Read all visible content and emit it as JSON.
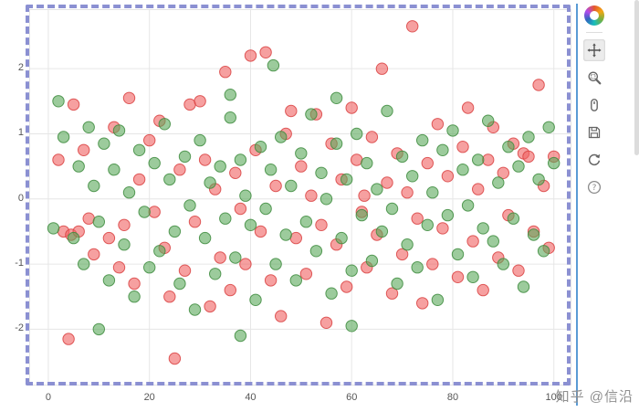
{
  "watermark": "知乎 @信沿",
  "toolbar": {
    "logo": "bokeh-logo",
    "tools": [
      {
        "name": "pan",
        "icon": "pan-icon",
        "active": true
      },
      {
        "name": "box-zoom",
        "icon": "box-zoom-icon",
        "active": false
      },
      {
        "name": "wheel-zoom",
        "icon": "wheel-zoom-icon",
        "active": false
      },
      {
        "name": "save",
        "icon": "save-icon",
        "active": false
      },
      {
        "name": "reset",
        "icon": "reset-icon",
        "active": false
      },
      {
        "name": "help",
        "icon": "help-icon",
        "active": false
      }
    ]
  },
  "colors": {
    "red_fill": "#f06060",
    "red_stroke": "#d94141",
    "green_fill": "#5aa95a",
    "green_stroke": "#3d8b3d",
    "grid": "#e6e6e6",
    "axis_label": "#565656",
    "selection_border": "#8b90d2",
    "toolbar_divider": "#5a9bd5"
  },
  "chart_data": {
    "type": "scatter",
    "title": "",
    "xlabel": "",
    "ylabel": "",
    "grid": true,
    "legend": "none",
    "xlim": [
      -3.6,
      103.3
    ],
    "ylim": [
      -2.85,
      2.9
    ],
    "x_ticks": [
      0,
      20,
      40,
      60,
      80,
      100
    ],
    "y_ticks": [
      -2,
      -1,
      0,
      1,
      2
    ],
    "series": [
      {
        "name": "red",
        "fill": "#f06060",
        "stroke": "#d94141",
        "points": [
          [
            4,
            -2.15
          ],
          [
            25,
            -2.45
          ],
          [
            72,
            2.65
          ],
          [
            40,
            2.2
          ],
          [
            43,
            2.25
          ],
          [
            97,
            1.75
          ],
          [
            5,
            1.45
          ],
          [
            16,
            1.55
          ],
          [
            28,
            1.45
          ],
          [
            22,
            1.2
          ],
          [
            35,
            1.95
          ],
          [
            30,
            1.5
          ],
          [
            48,
            1.35
          ],
          [
            53,
            1.3
          ],
          [
            60,
            1.4
          ],
          [
            66,
            2.0
          ],
          [
            83,
            1.4
          ],
          [
            88,
            1.1
          ],
          [
            2,
            0.6
          ],
          [
            3,
            -0.5
          ],
          [
            4.5,
            -0.55
          ],
          [
            6,
            -0.5
          ],
          [
            8,
            -0.3
          ],
          [
            9,
            -0.85
          ],
          [
            12,
            -0.6
          ],
          [
            14,
            -1.05
          ],
          [
            15,
            -0.4
          ],
          [
            17,
            -1.3
          ],
          [
            18,
            0.3
          ],
          [
            20,
            0.9
          ],
          [
            21,
            -0.2
          ],
          [
            23,
            -0.75
          ],
          [
            24,
            -1.5
          ],
          [
            26,
            0.45
          ],
          [
            27,
            -1.1
          ],
          [
            29,
            -0.35
          ],
          [
            31,
            0.6
          ],
          [
            32,
            -1.65
          ],
          [
            33,
            0.15
          ],
          [
            34,
            -0.9
          ],
          [
            36,
            -1.4
          ],
          [
            37,
            0.4
          ],
          [
            38,
            -0.15
          ],
          [
            39,
            -1.0
          ],
          [
            41,
            0.75
          ],
          [
            42,
            -0.5
          ],
          [
            44,
            -1.25
          ],
          [
            45,
            0.2
          ],
          [
            46,
            -1.8
          ],
          [
            47,
            1.0
          ],
          [
            49,
            -0.6
          ],
          [
            50,
            0.5
          ],
          [
            51,
            -1.15
          ],
          [
            52,
            0.05
          ],
          [
            54,
            -0.4
          ],
          [
            55,
            -1.9
          ],
          [
            56,
            0.85
          ],
          [
            57,
            -0.7
          ],
          [
            58,
            0.3
          ],
          [
            59,
            -1.35
          ],
          [
            61,
            0.6
          ],
          [
            62,
            -0.2
          ],
          [
            63,
            -1.05
          ],
          [
            64,
            0.95
          ],
          [
            65,
            -0.55
          ],
          [
            67,
            0.25
          ],
          [
            68,
            -1.45
          ],
          [
            69,
            0.7
          ],
          [
            70,
            -0.85
          ],
          [
            71,
            0.1
          ],
          [
            73,
            -0.3
          ],
          [
            74,
            -1.6
          ],
          [
            75,
            0.55
          ],
          [
            76,
            -1.0
          ],
          [
            77,
            1.15
          ],
          [
            78,
            -0.45
          ],
          [
            79,
            0.35
          ],
          [
            81,
            -1.2
          ],
          [
            82,
            0.8
          ],
          [
            84,
            -0.65
          ],
          [
            85,
            0.15
          ],
          [
            86,
            -1.4
          ],
          [
            87,
            0.6
          ],
          [
            89,
            -0.9
          ],
          [
            90,
            0.4
          ],
          [
            91,
            -0.25
          ],
          [
            92,
            0.85
          ],
          [
            93,
            -1.1
          ],
          [
            94,
            0.7
          ],
          [
            95,
            0.65
          ],
          [
            96,
            -0.5
          ],
          [
            98,
            0.2
          ],
          [
            99,
            -0.75
          ],
          [
            100,
            0.65
          ],
          [
            62.5,
            0.05
          ],
          [
            13,
            1.1
          ],
          [
            7,
            0.75
          ]
        ]
      },
      {
        "name": "green",
        "fill": "#5aa95a",
        "stroke": "#3d8b3d",
        "points": [
          [
            2,
            1.5
          ],
          [
            1,
            -0.45
          ],
          [
            3,
            0.95
          ],
          [
            5,
            -0.6
          ],
          [
            6,
            0.5
          ],
          [
            7,
            -1.0
          ],
          [
            8,
            1.1
          ],
          [
            9,
            0.2
          ],
          [
            10,
            -0.35
          ],
          [
            11,
            0.85
          ],
          [
            12,
            -1.25
          ],
          [
            13,
            0.45
          ],
          [
            14,
            1.05
          ],
          [
            15,
            -0.7
          ],
          [
            16,
            0.1
          ],
          [
            17,
            -1.5
          ],
          [
            18,
            0.75
          ],
          [
            19,
            -0.2
          ],
          [
            20,
            -1.05
          ],
          [
            21,
            0.55
          ],
          [
            22,
            -0.8
          ],
          [
            23,
            1.15
          ],
          [
            24,
            0.3
          ],
          [
            25,
            -0.5
          ],
          [
            26,
            -1.3
          ],
          [
            27,
            0.65
          ],
          [
            28,
            -0.1
          ],
          [
            29,
            -1.7
          ],
          [
            30,
            0.9
          ],
          [
            31,
            -0.6
          ],
          [
            32,
            0.25
          ],
          [
            33,
            -1.15
          ],
          [
            34,
            0.5
          ],
          [
            35,
            -0.3
          ],
          [
            36,
            1.25
          ],
          [
            37,
            -0.9
          ],
          [
            38,
            0.6
          ],
          [
            39,
            0.05
          ],
          [
            40,
            -0.4
          ],
          [
            41,
            -1.55
          ],
          [
            42,
            0.8
          ],
          [
            43,
            -0.15
          ],
          [
            44,
            0.45
          ],
          [
            45,
            -1.0
          ],
          [
            46,
            0.95
          ],
          [
            47,
            -0.55
          ],
          [
            48,
            0.2
          ],
          [
            49,
            -1.25
          ],
          [
            50,
            0.7
          ],
          [
            51,
            -0.35
          ],
          [
            52,
            1.3
          ],
          [
            53,
            -0.8
          ],
          [
            54,
            0.4
          ],
          [
            55,
            0.0
          ],
          [
            56,
            -1.45
          ],
          [
            57,
            0.85
          ],
          [
            58,
            -0.6
          ],
          [
            59,
            0.3
          ],
          [
            60,
            -1.1
          ],
          [
            61,
            1.0
          ],
          [
            62,
            -0.25
          ],
          [
            63,
            0.55
          ],
          [
            64,
            -0.95
          ],
          [
            65,
            0.15
          ],
          [
            66,
            -0.5
          ],
          [
            67,
            1.35
          ],
          [
            68,
            -0.15
          ],
          [
            69,
            -1.3
          ],
          [
            70,
            0.65
          ],
          [
            71,
            -0.7
          ],
          [
            72,
            0.35
          ],
          [
            73,
            -1.05
          ],
          [
            74,
            0.9
          ],
          [
            75,
            -0.4
          ],
          [
            76,
            0.1
          ],
          [
            77,
            -1.55
          ],
          [
            78,
            0.75
          ],
          [
            79,
            -0.25
          ],
          [
            80,
            1.05
          ],
          [
            81,
            -0.85
          ],
          [
            82,
            0.45
          ],
          [
            83,
            -0.1
          ],
          [
            84,
            -1.2
          ],
          [
            85,
            0.6
          ],
          [
            86,
            -0.45
          ],
          [
            87,
            1.2
          ],
          [
            88,
            -0.65
          ],
          [
            89,
            0.25
          ],
          [
            90,
            -1.0
          ],
          [
            91,
            0.8
          ],
          [
            92,
            -0.3
          ],
          [
            93,
            0.5
          ],
          [
            94,
            -1.35
          ],
          [
            95,
            0.95
          ],
          [
            96,
            -0.55
          ],
          [
            97,
            0.3
          ],
          [
            98,
            -0.8
          ],
          [
            99,
            1.1
          ],
          [
            100,
            0.55
          ],
          [
            10,
            -2.0
          ],
          [
            38,
            -2.1
          ],
          [
            60,
            -1.95
          ],
          [
            44.5,
            2.05
          ],
          [
            36,
            1.6
          ],
          [
            57,
            1.55
          ]
        ]
      }
    ]
  }
}
